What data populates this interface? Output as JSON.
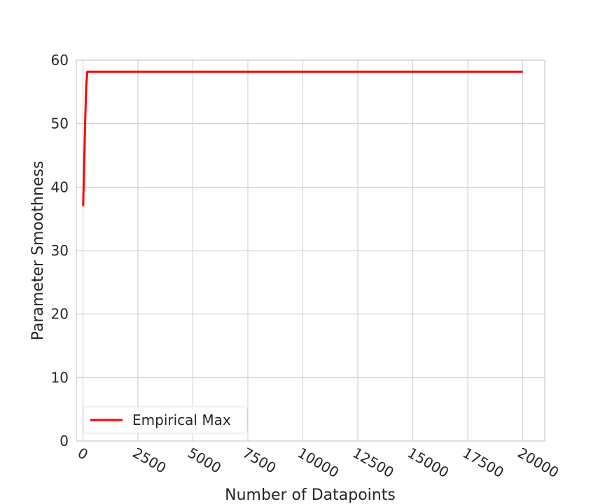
{
  "chart_data": {
    "type": "line",
    "title": "",
    "xlabel": "Number of Datapoints",
    "ylabel": "Parameter Smoothness",
    "xlim": [
      -300,
      21000
    ],
    "ylim": [
      0,
      60
    ],
    "xticks": [
      0,
      2500,
      5000,
      7500,
      10000,
      12500,
      15000,
      17500,
      20000
    ],
    "yticks": [
      0,
      10,
      20,
      30,
      40,
      50,
      60
    ],
    "grid": true,
    "legend_position": "lower-left",
    "series": [
      {
        "name": "Empirical Max",
        "color": "#ff0000",
        "x": [
          10,
          100,
          150,
          200,
          20000
        ],
        "y": [
          37,
          50,
          56,
          58.2,
          58.2
        ]
      }
    ]
  }
}
